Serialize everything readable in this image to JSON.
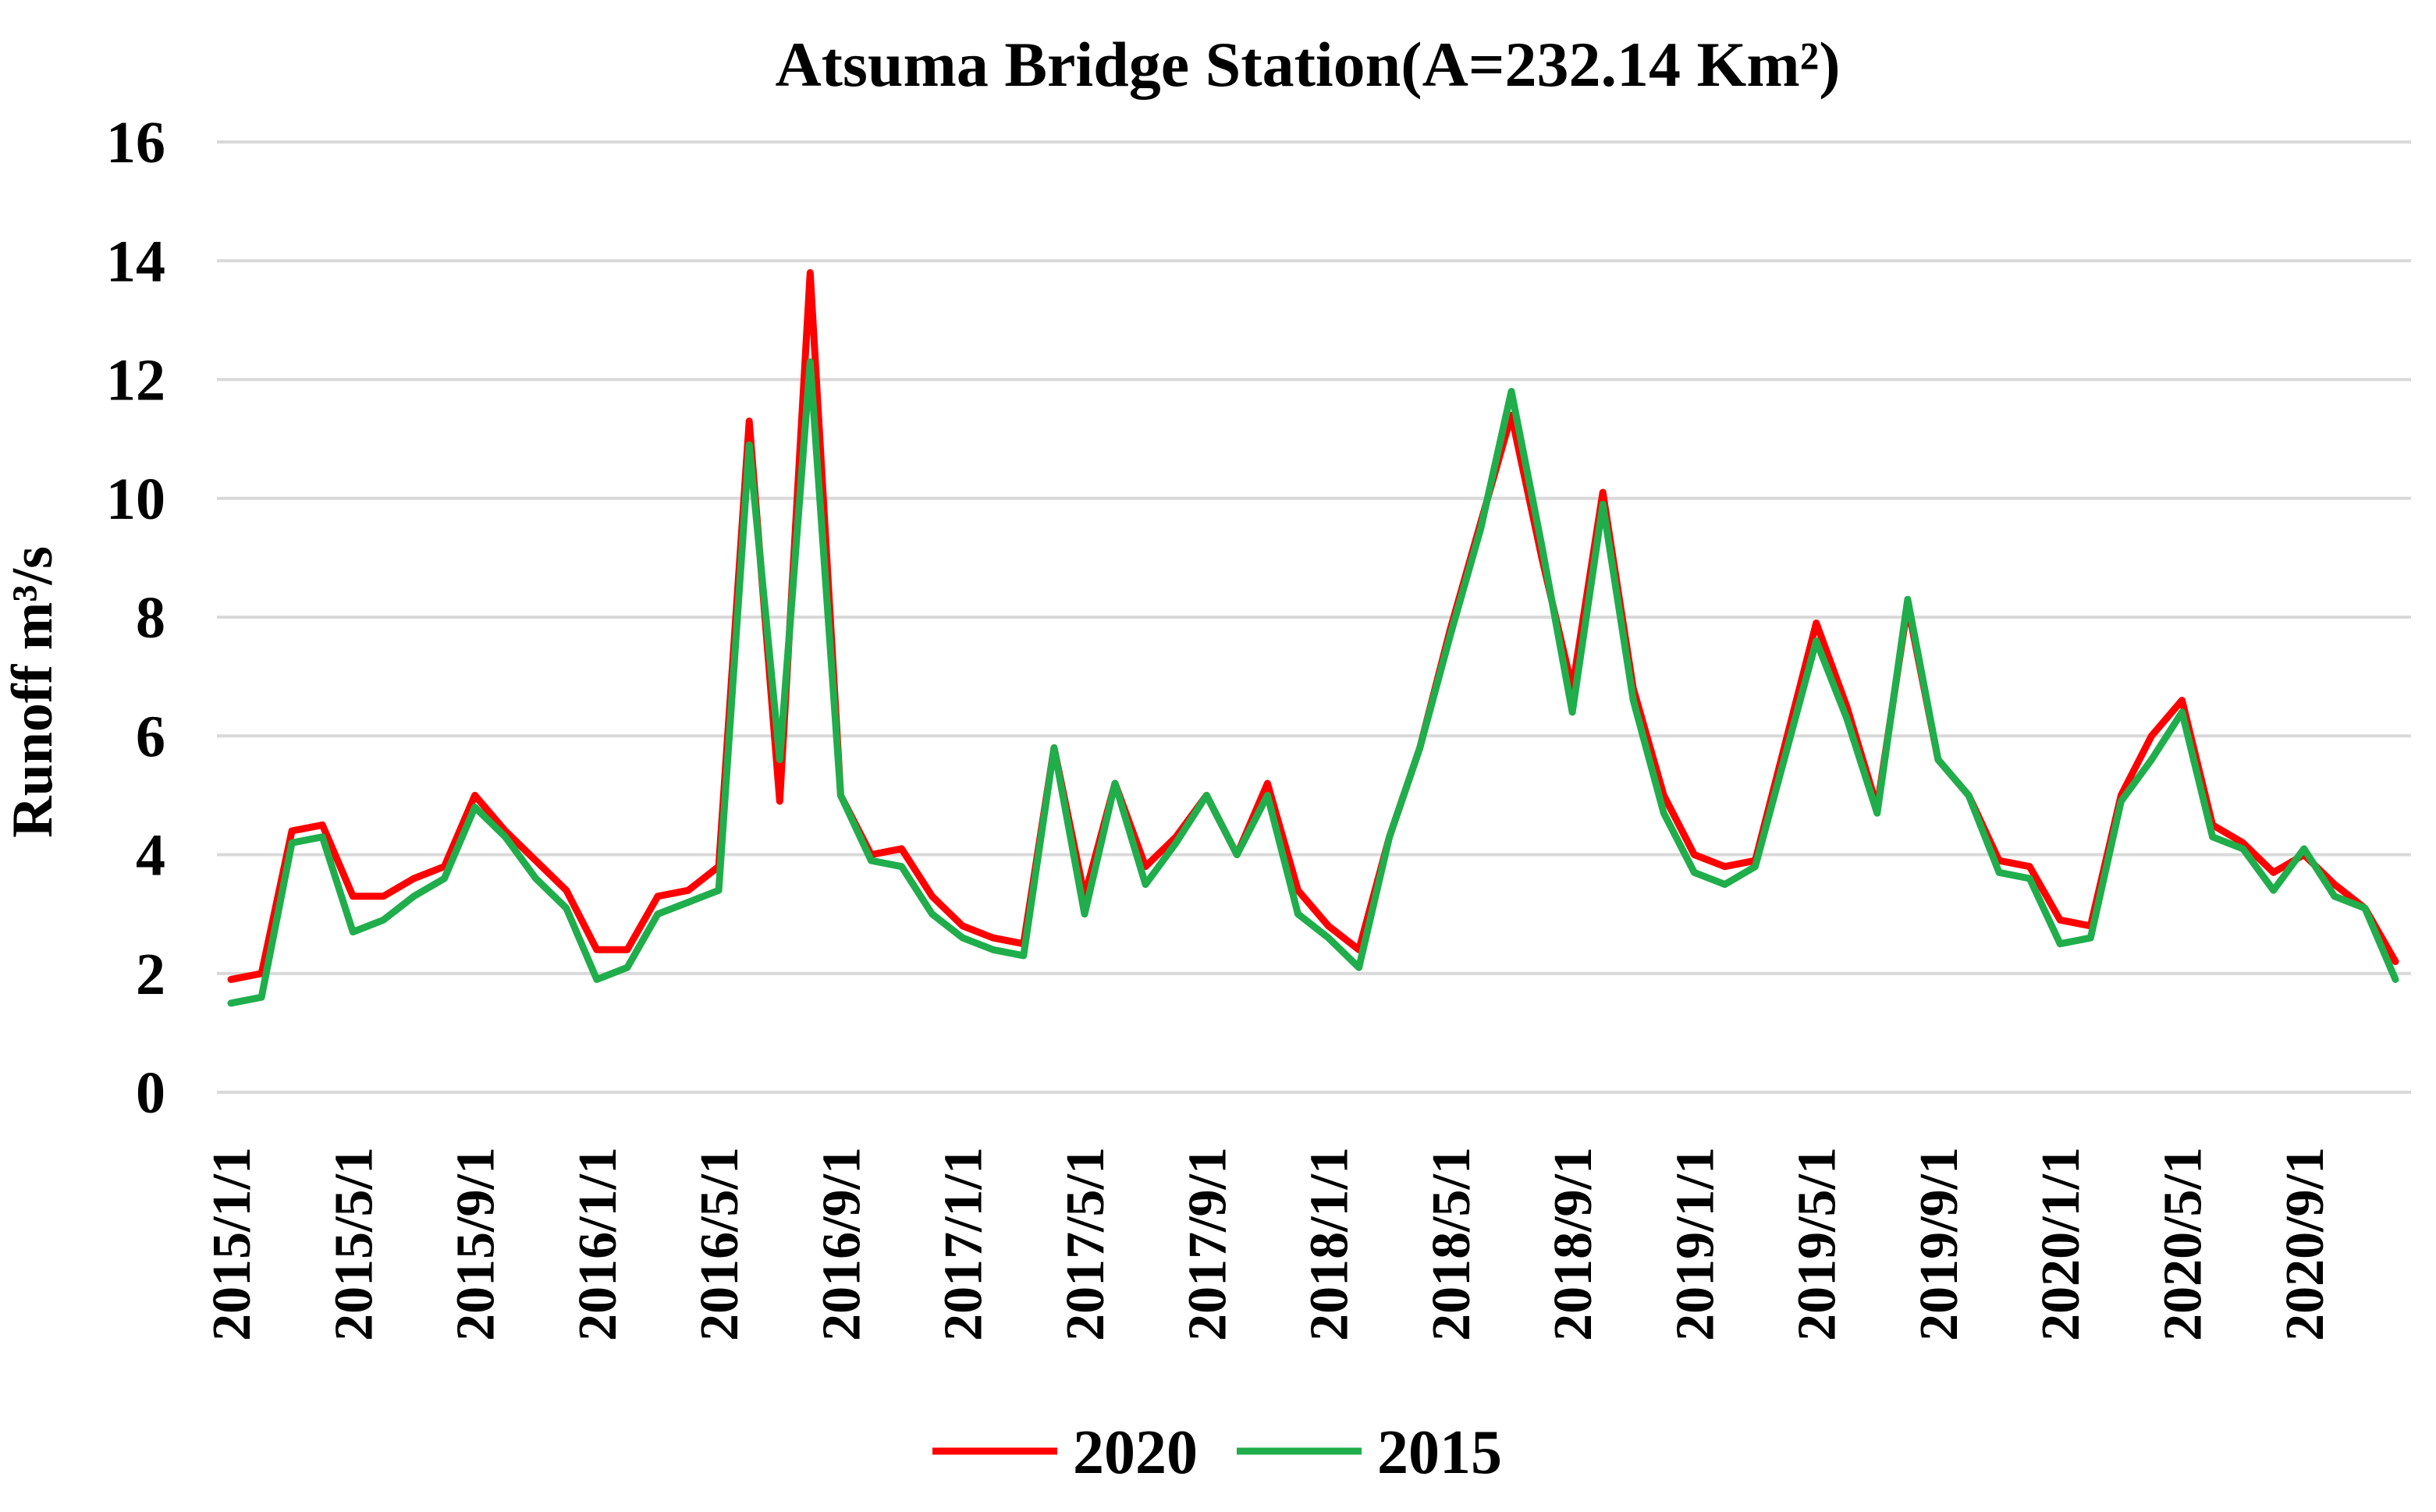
{
  "colors": {
    "series_2020": "#ff0000",
    "series_2015": "#1fae4b",
    "gridline": "#d9d9d9",
    "text": "#000000"
  },
  "chart_data": {
    "type": "line",
    "title": "Atsuma Bridge Station(A=232.14 Km²)",
    "xlabel": "",
    "ylabel": "Runoff m³/s",
    "ylim": [
      0,
      16
    ],
    "yticks": [
      "0",
      "2",
      "4",
      "6",
      "8",
      "10",
      "12",
      "14",
      "16"
    ],
    "grid": true,
    "legend_position": "bottom",
    "x": [
      "2015/1/1",
      "2015/2/1",
      "2015/3/1",
      "2015/4/1",
      "2015/5/1",
      "2015/6/1",
      "2015/7/1",
      "2015/8/1",
      "2015/9/1",
      "2015/10/1",
      "2015/11/1",
      "2015/12/1",
      "2016/1/1",
      "2016/2/1",
      "2016/3/1",
      "2016/4/1",
      "2016/5/1",
      "2016/6/1",
      "2016/7/1",
      "2016/8/1",
      "2016/9/1",
      "2016/10/1",
      "2016/11/1",
      "2016/12/1",
      "2017/1/1",
      "2017/2/1",
      "2017/3/1",
      "2017/4/1",
      "2017/5/1",
      "2017/6/1",
      "2017/7/1",
      "2017/8/1",
      "2017/9/1",
      "2017/10/1",
      "2017/11/1",
      "2017/12/1",
      "2018/1/1",
      "2018/2/1",
      "2018/3/1",
      "2018/4/1",
      "2018/5/1",
      "2018/6/1",
      "2018/7/1",
      "2018/8/1",
      "2018/9/1",
      "2018/10/1",
      "2018/11/1",
      "2018/12/1",
      "2019/1/1",
      "2019/2/1",
      "2019/3/1",
      "2019/4/1",
      "2019/5/1",
      "2019/6/1",
      "2019/7/1",
      "2019/8/1",
      "2019/9/1",
      "2019/10/1",
      "2019/11/1",
      "2019/12/1",
      "2020/1/1",
      "2020/2/1",
      "2020/3/1",
      "2020/4/1",
      "2020/5/1",
      "2020/6/1",
      "2020/7/1",
      "2020/8/1",
      "2020/9/1",
      "2020/10/1",
      "2020/11/1",
      "2020/12/1"
    ],
    "x_tick_labels": [
      "2015/1/1",
      "2015/5/1",
      "2015/9/1",
      "2016/1/1",
      "2016/5/1",
      "2016/9/1",
      "2017/1/1",
      "2017/5/1",
      "2017/9/1",
      "2018/1/1",
      "2018/5/1",
      "2018/9/1",
      "2019/1/1",
      "2019/5/1",
      "2019/9/1",
      "2020/1/1",
      "2020/5/1",
      "2020/9/1"
    ],
    "series": [
      {
        "name": "2020",
        "values": [
          1.9,
          2.0,
          4.4,
          4.5,
          3.3,
          3.3,
          3.6,
          3.8,
          5.0,
          4.4,
          3.9,
          3.4,
          2.4,
          2.4,
          3.3,
          3.4,
          3.8,
          11.3,
          4.9,
          13.8,
          5.0,
          4.0,
          4.1,
          3.3,
          2.8,
          2.6,
          2.5,
          5.8,
          3.3,
          5.2,
          3.8,
          4.3,
          5.0,
          4.0,
          5.2,
          3.4,
          2.8,
          2.4,
          4.3,
          5.8,
          7.8,
          9.6,
          11.4,
          9.0,
          6.8,
          10.1,
          6.8,
          5.0,
          4.0,
          3.8,
          3.9,
          5.9,
          7.9,
          6.5,
          4.8,
          8.2,
          5.6,
          5.0,
          3.9,
          3.8,
          2.9,
          2.8,
          5.0,
          6.0,
          6.6,
          4.5,
          4.2,
          3.7,
          4.0,
          3.5,
          3.1,
          2.2
        ]
      },
      {
        "name": "2015",
        "values": [
          1.5,
          1.6,
          4.2,
          4.3,
          2.7,
          2.9,
          3.3,
          3.6,
          4.8,
          4.3,
          3.6,
          3.1,
          1.9,
          2.1,
          3.0,
          3.2,
          3.4,
          10.9,
          5.6,
          12.3,
          5.0,
          3.9,
          3.8,
          3.0,
          2.6,
          2.4,
          2.3,
          5.8,
          3.0,
          5.2,
          3.5,
          4.2,
          5.0,
          4.0,
          5.0,
          3.0,
          2.6,
          2.1,
          4.3,
          5.8,
          7.7,
          9.5,
          11.8,
          9.2,
          6.4,
          9.9,
          6.6,
          4.7,
          3.7,
          3.5,
          3.8,
          5.7,
          7.6,
          6.3,
          4.7,
          8.3,
          5.6,
          5.0,
          3.7,
          3.6,
          2.5,
          2.6,
          4.9,
          5.6,
          6.4,
          4.3,
          4.1,
          3.4,
          4.1,
          3.3,
          3.1,
          1.9
        ]
      }
    ]
  }
}
